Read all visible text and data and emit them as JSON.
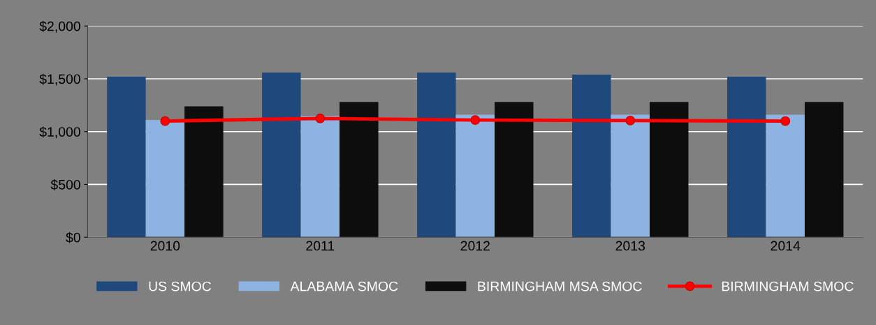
{
  "chart_data": {
    "type": "bar",
    "categories": [
      "2010",
      "2011",
      "2012",
      "2013",
      "2014"
    ],
    "series": [
      {
        "name": "US SMOC",
        "color": "#1f497d",
        "values": [
          1520,
          1560,
          1560,
          1540,
          1520
        ]
      },
      {
        "name": "ALABAMA SMOC",
        "color": "#8db3e2",
        "values": [
          1110,
          1150,
          1160,
          1160,
          1160
        ]
      },
      {
        "name": "BIRMINGHAM MSA SMOC",
        "color": "#0d0d0d",
        "values": [
          1240,
          1280,
          1280,
          1280,
          1280
        ]
      },
      {
        "name": "BIRMINGHAM SMOC",
        "color": "#ff0000",
        "type": "line",
        "marker": "circle",
        "values": [
          1100,
          1125,
          1110,
          1105,
          1100
        ]
      }
    ],
    "ylim": [
      0,
      2000
    ],
    "yticks": [
      {
        "value": 0,
        "label": "$0"
      },
      {
        "value": 500,
        "label": "$500"
      },
      {
        "value": 1000,
        "label": "$1,000"
      },
      {
        "value": 1500,
        "label": "$1,500"
      },
      {
        "value": 2000,
        "label": "$2,000"
      }
    ],
    "grid": "y",
    "legend": "bottom"
  }
}
